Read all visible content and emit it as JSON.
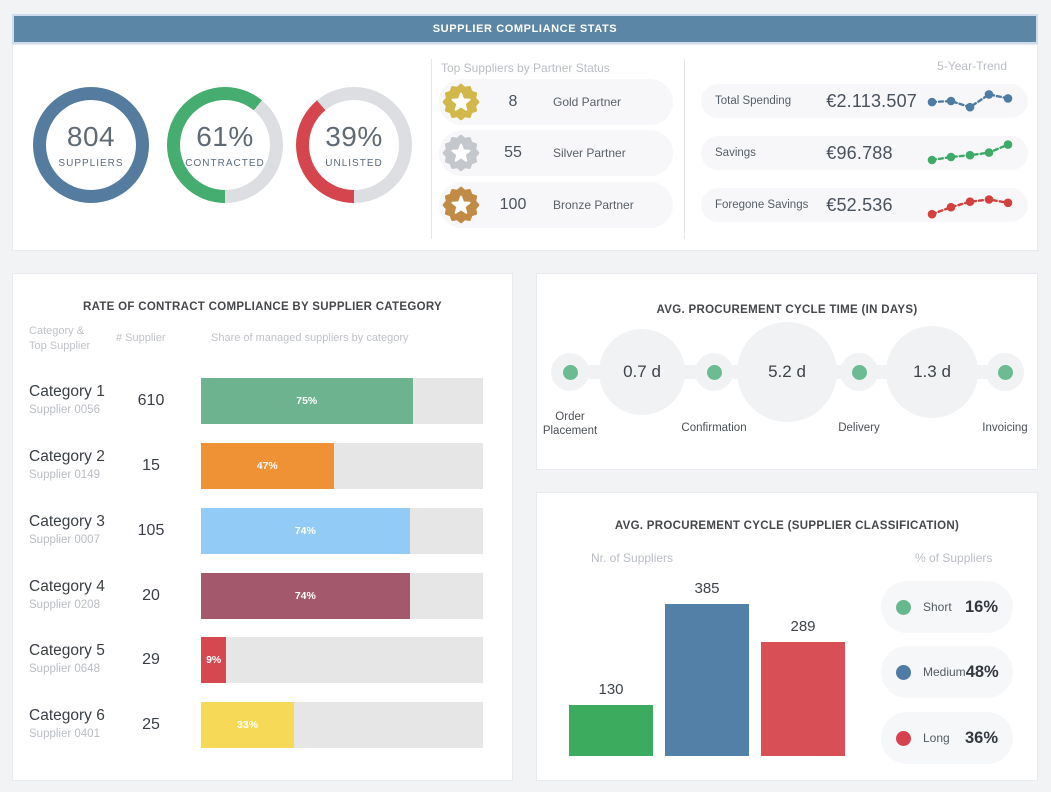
{
  "header": {
    "title": "SUPPLIER COMPLIANCE STATS"
  },
  "chart_data": [
    {
      "id": "supplier-donuts",
      "type": "donut",
      "track_color": "#dcdee1",
      "rings": [
        {
          "display": "804",
          "label": "SUPPLIERS",
          "pct": 100,
          "color": "#557b9e"
        },
        {
          "display": "61%",
          "label": "CONTRACTED",
          "pct": 61,
          "color": "#45ad6f"
        },
        {
          "display": "39%",
          "label": "UNLISTED",
          "pct": 39,
          "color": "#d4454e"
        }
      ]
    },
    {
      "id": "partner-status",
      "type": "table",
      "title": "Top Suppliers by Partner Status",
      "rows": [
        {
          "count": "8",
          "label": "Gold Partner",
          "color": "#d2b84a"
        },
        {
          "count": "55",
          "label": "Silver Partner",
          "color": "#c4c7cb"
        },
        {
          "count": "100",
          "label": "Bronze Partner",
          "color": "#c18a45"
        }
      ]
    },
    {
      "id": "five-year-trend",
      "type": "line",
      "title": "5-Year-Trend",
      "rows": [
        {
          "label": "Total Spending",
          "value": "€2.113.507",
          "color": "#4d7ba3",
          "points": [
            0.55,
            0.5,
            0.78,
            0.2,
            0.38
          ]
        },
        {
          "label": "Savings",
          "value": "€96.788",
          "color": "#3fa96a",
          "points": [
            0.82,
            0.68,
            0.6,
            0.48,
            0.12
          ]
        },
        {
          "label": "Foregone Savings",
          "value": "€52.536",
          "color": "#d0413f",
          "points": [
            0.92,
            0.6,
            0.35,
            0.25,
            0.4
          ]
        }
      ]
    },
    {
      "id": "contract-compliance",
      "type": "bar",
      "title": "RATE OF CONTRACT COMPLIANCE BY SUPPLIER CATEGORY",
      "xlim": [
        0,
        100
      ],
      "columns": {
        "c1a": "Category &",
        "c1b": "Top Supplier",
        "c2": "# Supplier",
        "c3": "Share of managed suppliers by category"
      },
      "track_color": "#e6e6e6",
      "rows": [
        {
          "category": "Category 1",
          "supplier": "Supplier 0056",
          "count": "610",
          "pct": 75,
          "pct_label": "75%",
          "color": "#6db390"
        },
        {
          "category": "Category 2",
          "supplier": "Supplier 0149",
          "count": "15",
          "pct": 47,
          "pct_label": "47%",
          "color": "#ee9235"
        },
        {
          "category": "Category 3",
          "supplier": "Supplier 0007",
          "count": "105",
          "pct": 74,
          "pct_label": "74%",
          "color": "#92cbf5"
        },
        {
          "category": "Category 4",
          "supplier": "Supplier 0208",
          "count": "20",
          "pct": 74,
          "pct_label": "74%",
          "color": "#a3596b"
        },
        {
          "category": "Category 5",
          "supplier": "Supplier 0648",
          "count": "29",
          "pct": 9,
          "pct_label": "9%",
          "color": "#d6484f"
        },
        {
          "category": "Category 6",
          "supplier": "Supplier 0401",
          "count": "25",
          "pct": 33,
          "pct_label": "33%",
          "color": "#f6da57"
        }
      ]
    },
    {
      "id": "cycle-time",
      "type": "table",
      "title": "AVG. PROCUREMENT CYCLE TIME (IN DAYS)",
      "durations": [
        "0.7 d",
        "5.2 d",
        "1.3 d"
      ],
      "stages": [
        "Order Placement",
        "Confirmation",
        "Delivery",
        "Invoicing"
      ],
      "dot_color": "#6cbb92"
    },
    {
      "id": "cycle-classification",
      "type": "bar",
      "title": "AVG. PROCUREMENT CYCLE (SUPPLIER CLASSIFICATION)",
      "left_axis_label": "Nr. of Suppliers",
      "right_axis_label": "% of Suppliers",
      "categories": [
        "Short",
        "Medium",
        "Long"
      ],
      "values": [
        130,
        385,
        289
      ],
      "percents": [
        "16%",
        "48%",
        "36%"
      ],
      "colors": [
        "#3cab5e",
        "#5380a7",
        "#d94f56"
      ],
      "legend_colors": [
        "#68b88d",
        "#4e7ca6",
        "#d6434f"
      ],
      "ymax": 400
    }
  ]
}
